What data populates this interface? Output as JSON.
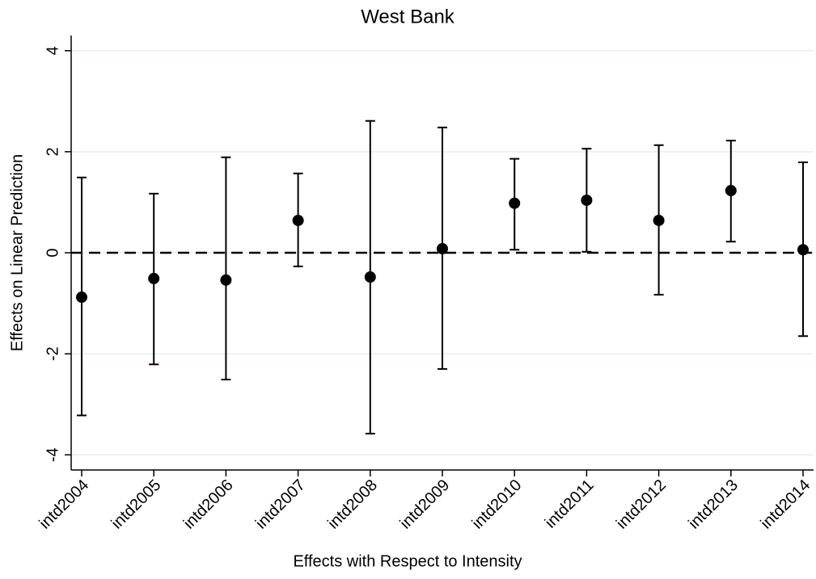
{
  "chart_data": {
    "type": "errorbar",
    "title": "West Bank",
    "x_label": "Effects with Respect to Intensity",
    "y_label": "Effects on Linear Prediction",
    "categories": [
      "intd2004",
      "intd2005",
      "intd2006",
      "intd2007",
      "intd2008",
      "intd2009",
      "intd2010",
      "intd2011",
      "intd2012",
      "intd2013",
      "intd2014"
    ],
    "series": [
      {
        "color": "#000000",
        "values": [
          -0.88,
          -0.51,
          -0.54,
          0.64,
          -0.48,
          0.08,
          0.98,
          1.04,
          0.64,
          1.23,
          0.06
        ],
        "lower": [
          -3.22,
          -2.21,
          -2.51,
          -0.27,
          -3.58,
          -2.3,
          0.06,
          0.02,
          -0.83,
          0.22,
          -1.65
        ],
        "upper": [
          1.49,
          1.17,
          1.89,
          1.57,
          2.61,
          2.48,
          1.86,
          2.06,
          2.13,
          2.22,
          1.79
        ]
      }
    ],
    "ylim": [
      -4.3,
      4.3
    ],
    "yticks": [
      -4,
      -2,
      0,
      2,
      4
    ],
    "grid": true,
    "refline": 0
  }
}
